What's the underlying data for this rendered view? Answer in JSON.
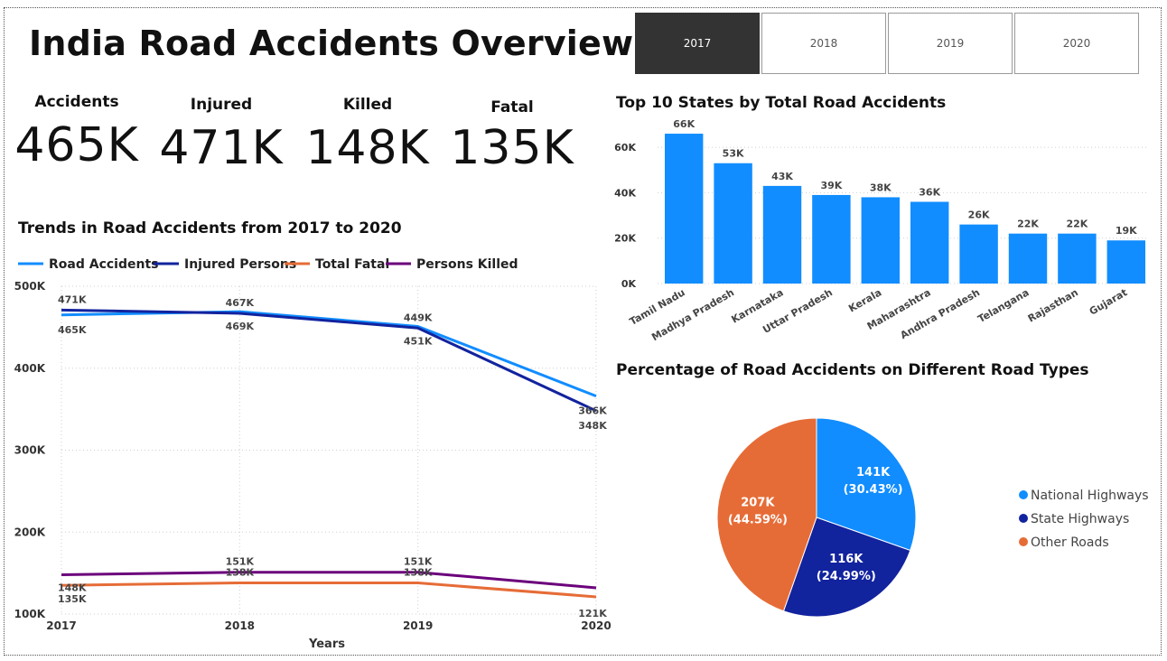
{
  "title": "India Road Accidents Overview",
  "year_slicer": {
    "options": [
      "2017",
      "2018",
      "2019",
      "2020"
    ],
    "selected": "2017"
  },
  "kpis": [
    {
      "label": "Accidents",
      "value": "465K"
    },
    {
      "label": "Injured",
      "value": "471K"
    },
    {
      "label": "Killed",
      "value": "148K"
    },
    {
      "label": "Fatal",
      "value": "135K"
    }
  ],
  "colors": {
    "road_accidents": "#118DFF",
    "injured_persons": "#12239E",
    "total_fatal": "#E66C37",
    "persons_killed": "#6B007B",
    "bar": "#118DFF",
    "national_highways": "#118DFF",
    "state_highways": "#12239E",
    "other_roads": "#E66C37"
  },
  "chart_data": [
    {
      "type": "line",
      "title": "Trends in Road Accidents from 2017 to 2020",
      "xlabel": "Years",
      "ylabel": "",
      "x": [
        2017,
        2018,
        2019,
        2020
      ],
      "ylim": [
        100000,
        500000
      ],
      "yticks": [
        {
          "value": 100000,
          "label": "100K"
        },
        {
          "value": 200000,
          "label": "200K"
        },
        {
          "value": 300000,
          "label": "300K"
        },
        {
          "value": 400000,
          "label": "400K"
        },
        {
          "value": 500000,
          "label": "500K"
        }
      ],
      "legend": "top",
      "grid": true,
      "series": [
        {
          "name": "Road Accidents",
          "color_key": "road_accidents",
          "values": [
            465000,
            469000,
            451000,
            366000
          ],
          "labels": [
            "465K",
            "469K",
            "451K",
            "366K"
          ],
          "label_pos": [
            "below",
            "below",
            "below",
            "below"
          ]
        },
        {
          "name": "Injured Persons",
          "color_key": "injured_persons",
          "values": [
            471000,
            467000,
            449000,
            348000
          ],
          "labels": [
            "471K",
            "467K",
            "449K",
            "348K"
          ],
          "label_pos": [
            "above",
            "above",
            "above",
            "below2"
          ]
        },
        {
          "name": "Total Fatal",
          "color_key": "total_fatal",
          "values": [
            135000,
            138000,
            138000,
            121000
          ],
          "labels": [
            "135K",
            "138K",
            "138K",
            "121K"
          ],
          "label_pos": [
            "below2",
            "above",
            "above",
            "below2"
          ]
        },
        {
          "name": "Persons Killed",
          "color_key": "persons_killed",
          "values": [
            148000,
            151000,
            151000,
            132000
          ],
          "labels": [
            "148K",
            "151K",
            "151K",
            ""
          ],
          "label_pos": [
            "below",
            "above",
            "above",
            "above"
          ]
        }
      ]
    },
    {
      "type": "bar",
      "title": "Top 10 States by Total Road Accidents",
      "categories": [
        "Tamil Nadu",
        "Madhya Pradesh",
        "Karnataka",
        "Uttar Pradesh",
        "Kerala",
        "Maharashtra",
        "Andhra Pradesh",
        "Telangana",
        "Rajasthan",
        "Gujarat"
      ],
      "values": [
        66000,
        53000,
        43000,
        39000,
        38000,
        36000,
        26000,
        22000,
        22000,
        19000
      ],
      "data_labels": [
        "66K",
        "53K",
        "43K",
        "39K",
        "38K",
        "36K",
        "26K",
        "22K",
        "22K",
        "19K"
      ],
      "ylim": [
        0,
        70000
      ],
      "yticks": [
        {
          "value": 0,
          "label": "0K"
        },
        {
          "value": 20000,
          "label": "20K"
        },
        {
          "value": 40000,
          "label": "40K"
        },
        {
          "value": 60000,
          "label": "60K"
        }
      ],
      "xlabel": "",
      "ylabel": "",
      "grid": true
    },
    {
      "type": "pie",
      "title": "Percentage of Road Accidents on Different Road Types",
      "legend": "right",
      "slices": [
        {
          "name": "National Highways",
          "value": 141000,
          "value_label": "141K",
          "percent_label": "(30.43%)",
          "color_key": "national_highways"
        },
        {
          "name": "State Highways",
          "value": 116000,
          "value_label": "116K",
          "percent_label": "(24.99%)",
          "color_key": "state_highways"
        },
        {
          "name": "Other Roads",
          "value": 207000,
          "value_label": "207K",
          "percent_label": "(44.59%)",
          "color_key": "other_roads"
        }
      ]
    }
  ]
}
